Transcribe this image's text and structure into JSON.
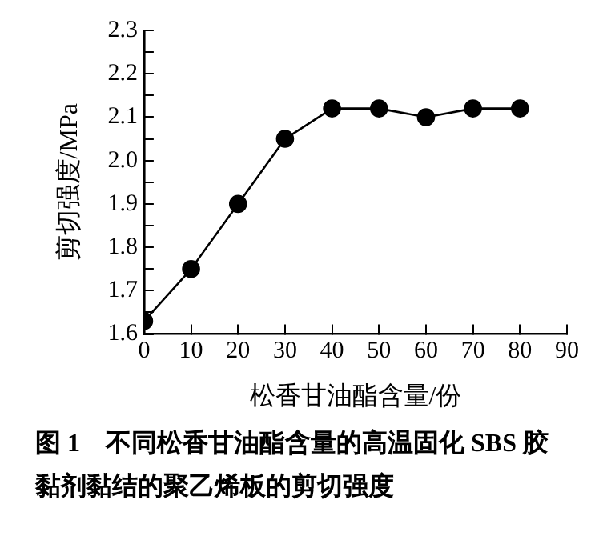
{
  "chart_data": {
    "type": "line",
    "title": "图 1　不同松香甘油酯含量的高温固化 SBS 胶黏剂黏结的聚乙烯板的剪切强度",
    "xlabel": "松香甘油酯含量/份",
    "ylabel": "剪切强度/MPa",
    "x": [
      0,
      10,
      20,
      30,
      40,
      50,
      60,
      70,
      80
    ],
    "series": [
      {
        "color": "#000000",
        "values": [
          1.63,
          1.75,
          1.9,
          2.05,
          2.12,
          2.12,
          2.1,
          2.12,
          2.12
        ]
      }
    ],
    "xlim": [
      0,
      90
    ],
    "xticks": [
      0,
      10,
      20,
      30,
      40,
      50,
      60,
      70,
      80,
      90
    ],
    "ylim": [
      1.6,
      2.3
    ],
    "yticks": [
      {
        "value": 1.6,
        "label": "1.6"
      },
      {
        "value": 1.65,
        "label": null
      },
      {
        "value": 1.7,
        "label": "1.7"
      },
      {
        "value": 1.75,
        "label": null
      },
      {
        "value": 1.8,
        "label": "1.8"
      },
      {
        "value": 1.85,
        "label": null
      },
      {
        "value": 1.9,
        "label": "1.9"
      },
      {
        "value": 1.95,
        "label": null
      },
      {
        "value": 2.0,
        "label": "2.0"
      },
      {
        "value": 2.05,
        "label": null
      },
      {
        "value": 2.1,
        "label": "2.1"
      },
      {
        "value": 2.15,
        "label": null
      },
      {
        "value": 2.2,
        "label": "2.2"
      },
      {
        "value": 2.25,
        "label": null
      },
      {
        "value": 2.3,
        "label": "2.3"
      }
    ],
    "grid": false,
    "legend": false,
    "marker": "circle",
    "line_style": "solid"
  }
}
